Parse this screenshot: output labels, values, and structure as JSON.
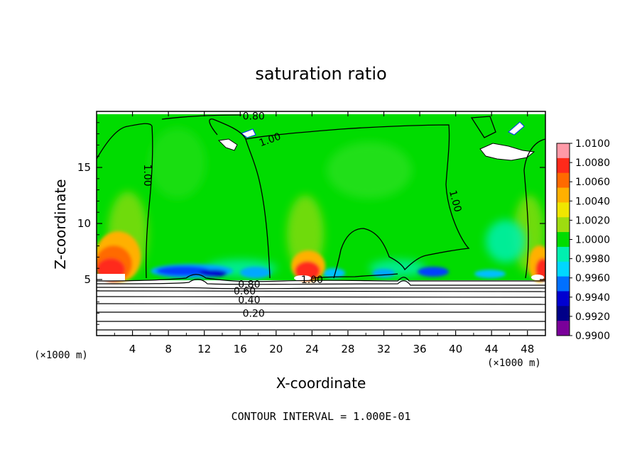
{
  "chart_data": {
    "type": "heatmap",
    "title": "saturation ratio",
    "xlabel": "X-coordinate",
    "ylabel": "Z-coordinate",
    "x_unit_label": "(×1000 m)",
    "z_unit_label": "(×1000 m)",
    "xlim": [
      0,
      50
    ],
    "ylim": [
      0,
      20
    ],
    "x_ticks": [
      4,
      8,
      12,
      16,
      20,
      24,
      28,
      32,
      36,
      40,
      44,
      48
    ],
    "y_ticks": [
      5,
      10,
      15
    ],
    "footer": "CONTOUR INTERVAL = 1.000E-01",
    "colorbar": {
      "labels": [
        "1.0100",
        "1.0080",
        "1.0060",
        "1.0040",
        "1.0020",
        "1.0000",
        "0.9980",
        "0.9960",
        "0.9940",
        "0.9920",
        "0.9900"
      ],
      "colors": [
        "#ff9aa8",
        "#ff2a1a",
        "#ff6a00",
        "#ffb000",
        "#f0e600",
        "#9edc10",
        "#00dc00",
        "#00f0b0",
        "#00d8ff",
        "#0070ff",
        "#0000d0",
        "#000088",
        "#7a009a"
      ]
    },
    "contour_labels": [
      {
        "text": "1.00",
        "x": 5.7,
        "z": 14.3,
        "rotate": 90
      },
      {
        "text": "1.00",
        "x": 19.3,
        "z": 17.5,
        "rotate": -20
      },
      {
        "text": "1.00",
        "x": 40.0,
        "z": 12.0,
        "rotate": 75
      },
      {
        "text": "0.80",
        "x": 17.5,
        "z": 19.6,
        "rotate": 0
      },
      {
        "text": "1.00",
        "x": 24.0,
        "z": 5.0,
        "rotate": 0
      },
      {
        "text": "0.80",
        "x": 17.0,
        "z": 4.6,
        "rotate": 0
      },
      {
        "text": "0.60",
        "x": 16.5,
        "z": 4.0,
        "rotate": 0
      },
      {
        "text": "0.40",
        "x": 17.0,
        "z": 3.2,
        "rotate": 0
      },
      {
        "text": "0.20",
        "x": 17.5,
        "z": 2.0,
        "rotate": 0
      }
    ]
  }
}
